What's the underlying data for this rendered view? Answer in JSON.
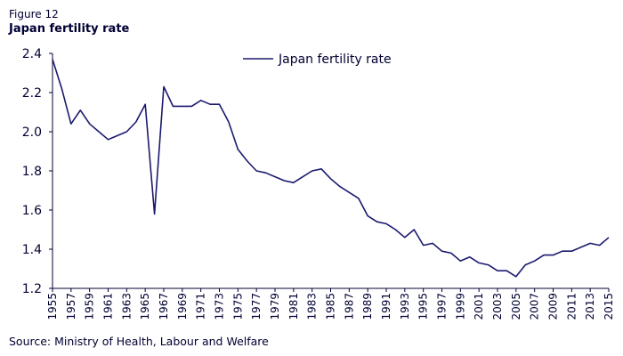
{
  "figure": {
    "label": "Figure 12",
    "title": "Japan fertility rate",
    "source": "Source: Ministry of Health, Labour and Welfare"
  },
  "colors": {
    "line": "#1a1a6e",
    "axis": "#000033"
  },
  "chart_data": {
    "type": "line",
    "title": "Japan fertility rate",
    "xlabel": "",
    "ylabel": "",
    "ylim": [
      1.2,
      2.4
    ],
    "yticks": [
      1.2,
      1.4,
      1.6,
      1.8,
      2.0,
      2.2,
      2.4
    ],
    "ytick_labels": [
      "1.2",
      "1.4",
      "1.6",
      "1.8",
      "2.0",
      "2.2",
      "2.4"
    ],
    "xlim": [
      1955,
      2015
    ],
    "xticks": [
      1955,
      1957,
      1959,
      1961,
      1963,
      1965,
      1967,
      1969,
      1971,
      1973,
      1975,
      1977,
      1979,
      1981,
      1983,
      1985,
      1987,
      1989,
      1991,
      1993,
      1995,
      1997,
      1999,
      2001,
      2003,
      2005,
      2007,
      2009,
      2011,
      2013,
      2015
    ],
    "legend": "top-center",
    "grid": false,
    "series": [
      {
        "name": "Japan fertility rate",
        "x": [
          1955,
          1956,
          1957,
          1958,
          1959,
          1960,
          1961,
          1962,
          1963,
          1964,
          1965,
          1966,
          1967,
          1968,
          1969,
          1970,
          1971,
          1972,
          1973,
          1974,
          1975,
          1976,
          1977,
          1978,
          1979,
          1980,
          1981,
          1982,
          1983,
          1984,
          1985,
          1986,
          1987,
          1988,
          1989,
          1990,
          1991,
          1992,
          1993,
          1994,
          1995,
          1996,
          1997,
          1998,
          1999,
          2000,
          2001,
          2002,
          2003,
          2004,
          2005,
          2006,
          2007,
          2008,
          2009,
          2010,
          2011,
          2012,
          2013,
          2014,
          2015
        ],
        "values": [
          2.37,
          2.22,
          2.04,
          2.11,
          2.04,
          2.0,
          1.96,
          1.98,
          2.0,
          2.05,
          2.14,
          1.58,
          2.23,
          2.13,
          2.13,
          2.13,
          2.16,
          2.14,
          2.14,
          2.05,
          1.91,
          1.85,
          1.8,
          1.79,
          1.77,
          1.75,
          1.74,
          1.77,
          1.8,
          1.81,
          1.76,
          1.72,
          1.69,
          1.66,
          1.57,
          1.54,
          1.53,
          1.5,
          1.46,
          1.5,
          1.42,
          1.43,
          1.39,
          1.38,
          1.34,
          1.36,
          1.33,
          1.32,
          1.29,
          1.29,
          1.26,
          1.32,
          1.34,
          1.37,
          1.37,
          1.39,
          1.39,
          1.41,
          1.43,
          1.42,
          1.46
        ]
      }
    ]
  }
}
